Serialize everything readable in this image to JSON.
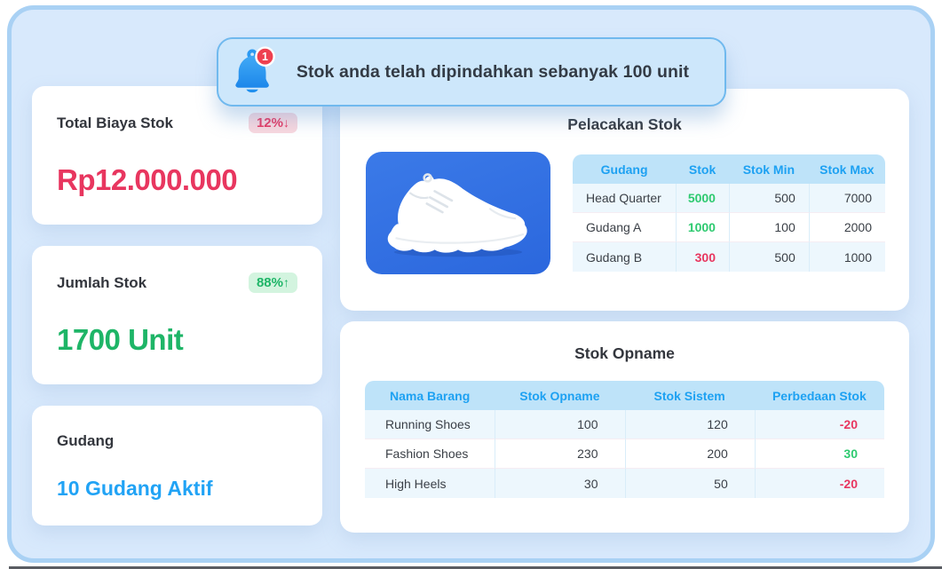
{
  "colors": {
    "page_bg": "#d8e9fc",
    "frame_border": "#a9d1f4",
    "banner_bg": "#cde7fb",
    "banner_border": "#70b9ee",
    "accent_blue": "#1da1f2",
    "link_blue": "#21a3f5",
    "pink": "#e8365f",
    "pink_badge_bg": "#f9d7de",
    "green": "#1eb567",
    "green_badge_bg": "#d3f4df",
    "table_header_bg": "#bee3f9",
    "product_tile_blue": "#2f70e2",
    "notification_badge_red": "#ee4050"
  },
  "notification": {
    "count": "1",
    "message": "Stok anda telah dipindahkan sebanyak 100 unit"
  },
  "cards": [
    {
      "title": "Total Biaya Stok",
      "badge_value": "12%",
      "badge_arrow": "↓",
      "badge_tone": "pink",
      "value": "Rp12.000.000",
      "value_tone": "pink"
    },
    {
      "title": "Jumlah Stok",
      "badge_value": "88%",
      "badge_arrow": "↑",
      "badge_tone": "green",
      "value": "1700 Unit",
      "value_tone": "green"
    },
    {
      "title": "Gudang",
      "value": "10 Gudang Aktif",
      "value_tone": "blue"
    }
  ],
  "pelacakan": {
    "title": "Pelacakan Stok",
    "product_image": "white-sneaker",
    "table": {
      "headers": [
        "Gudang",
        "Stok",
        "Stok Min",
        "Stok Max"
      ],
      "align": [
        "left",
        "right",
        "right",
        "right"
      ],
      "rows": [
        [
          {
            "t": "Head Quarter"
          },
          {
            "t": "5000",
            "tone": "green"
          },
          {
            "t": "500"
          },
          {
            "t": "7000"
          }
        ],
        [
          {
            "t": "Gudang A"
          },
          {
            "t": "1000",
            "tone": "green"
          },
          {
            "t": "100"
          },
          {
            "t": "2000"
          }
        ],
        [
          {
            "t": "Gudang B"
          },
          {
            "t": "300",
            "tone": "red"
          },
          {
            "t": "500"
          },
          {
            "t": "1000"
          }
        ]
      ]
    }
  },
  "stok_opname": {
    "title": "Stok Opname",
    "table": {
      "headers": [
        "Nama Barang",
        "Stok Opname",
        "Stok Sistem",
        "Perbedaan Stok"
      ],
      "align": [
        "left",
        "right",
        "right",
        "right"
      ],
      "rows": [
        [
          {
            "t": "Running Shoes"
          },
          {
            "t": "100"
          },
          {
            "t": "120"
          },
          {
            "t": "-20",
            "tone": "red"
          }
        ],
        [
          {
            "t": "Fashion Shoes"
          },
          {
            "t": "230"
          },
          {
            "t": "200"
          },
          {
            "t": "30",
            "tone": "green"
          }
        ],
        [
          {
            "t": "High Heels"
          },
          {
            "t": "30"
          },
          {
            "t": "50"
          },
          {
            "t": "-20",
            "tone": "red"
          }
        ]
      ]
    }
  }
}
